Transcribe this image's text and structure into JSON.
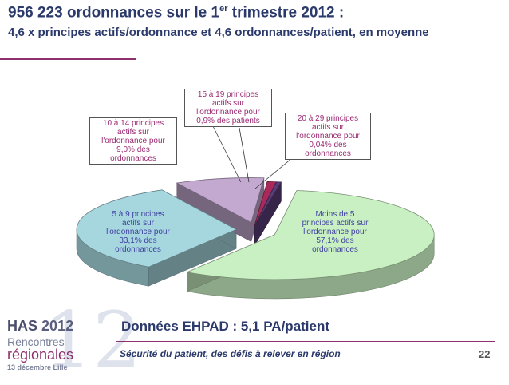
{
  "header": {
    "title_main": "956 223 ordonnances sur le 1",
    "title_sup": "er",
    "title_tail": " trimestre 2012 :",
    "subtitle": "4,6 x principes actifs/ordonnance et 4,6 ordonnances/patient, en moyenne"
  },
  "chart_data": {
    "type": "pie",
    "title": "",
    "unit": "% des ordonnances",
    "slices": [
      {
        "lines": [
          "Moins de 5",
          "principes actifs sur",
          "l'ordonnance pour",
          "57,1% des",
          "ordonnances"
        ],
        "value": 57.1,
        "color": "#c9f0c2"
      },
      {
        "lines": [
          "5 à 9 principes",
          "actifs sur",
          "l'ordonnance pour",
          "33,1% des",
          "ordonnances"
        ],
        "value": 33.1,
        "color": "#a6d7df"
      },
      {
        "lines": [
          "10 à 14 principes",
          "actifs sur",
          "l'ordonnance pour",
          "9,0% des",
          "ordonnances"
        ],
        "value": 9.0,
        "color": "#c3a8d0"
      },
      {
        "lines": [
          "15 à 19 principes",
          "actifs sur",
          "l'ordonnance pour",
          "0,9% des patients"
        ],
        "value": 0.9,
        "color": "#a8295a"
      },
      {
        "lines": [
          "20 à 29 principes",
          "actifs sur",
          "l'ordonnance pour",
          "0,04% des",
          "ordonnances"
        ],
        "value": 0.04,
        "color": "#5a3d78"
      }
    ]
  },
  "note": "Données EHPAD : 5,1 PA/patient",
  "footer": {
    "text": "Sécurité du patient, des défis à relever en région",
    "page": "22"
  },
  "logo": {
    "has": "HAS",
    "year": "2012",
    "line2": "Rencontres",
    "line3": "régionales",
    "date": "13 décembre Lille",
    "big": "12"
  }
}
